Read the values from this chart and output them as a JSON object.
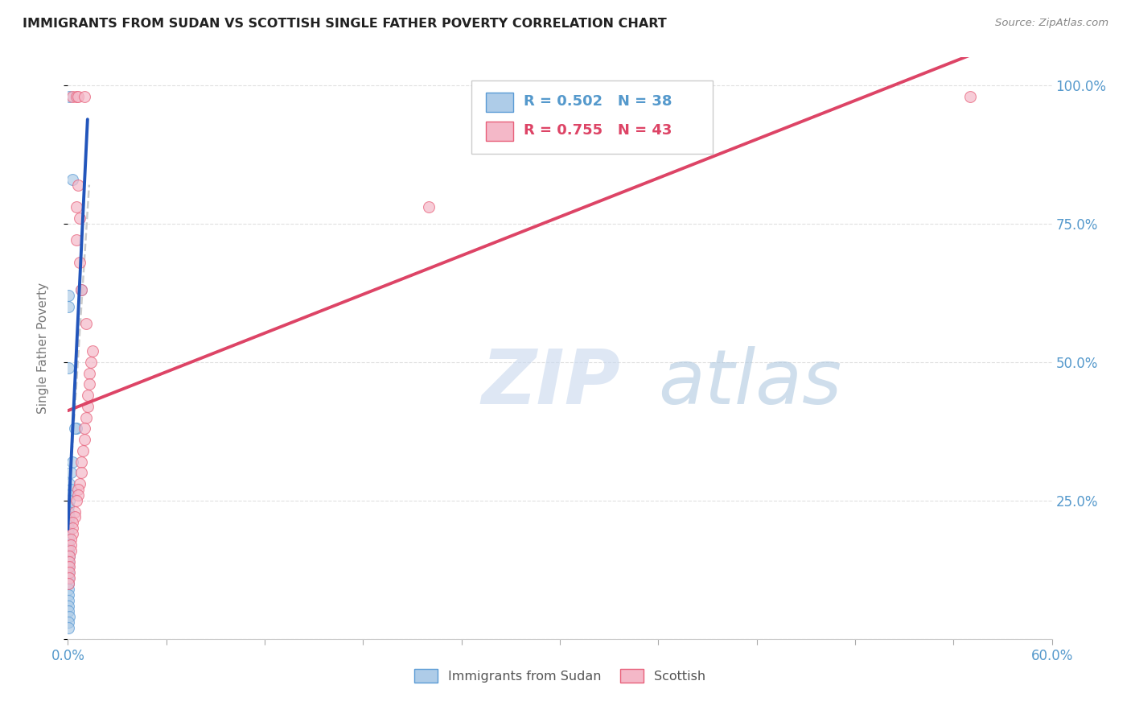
{
  "title": "IMMIGRANTS FROM SUDAN VS SCOTTISH SINGLE FATHER POVERTY CORRELATION CHART",
  "source": "Source: ZipAtlas.com",
  "ylabel": "Single Father Poverty",
  "legend_blue_r": "R = 0.502",
  "legend_blue_n": "N = 38",
  "legend_pink_r": "R = 0.755",
  "legend_pink_n": "N = 43",
  "watermark_zip": "ZIP",
  "watermark_atlas": "atlas",
  "blue_color": "#aecce8",
  "blue_edge": "#5b9bd5",
  "pink_color": "#f4b8c8",
  "pink_edge": "#e8607a",
  "blue_line_color": "#2255bb",
  "pink_line_color": "#dd4466",
  "dash_color": "#cccccc",
  "grid_color": "#e0e0e0",
  "tick_color": "#5599cc",
  "ylabel_color": "#777777",
  "blue_scatter": [
    [
      0.1,
      98.0
    ],
    [
      0.3,
      83.0
    ],
    [
      0.02,
      62.0
    ],
    [
      0.02,
      49.0
    ],
    [
      0.8,
      63.0
    ],
    [
      0.5,
      38.0
    ],
    [
      0.4,
      38.0
    ],
    [
      0.3,
      32.0
    ],
    [
      0.2,
      30.0
    ],
    [
      0.1,
      28.0
    ],
    [
      0.2,
      27.0
    ],
    [
      0.1,
      26.0
    ],
    [
      0.1,
      25.0
    ],
    [
      0.01,
      24.0
    ],
    [
      0.01,
      23.0
    ],
    [
      0.01,
      22.0
    ],
    [
      0.1,
      22.0
    ],
    [
      0.01,
      21.0
    ],
    [
      0.01,
      20.0
    ],
    [
      0.01,
      19.0
    ],
    [
      0.01,
      18.0
    ],
    [
      0.01,
      17.0
    ],
    [
      0.01,
      16.0
    ],
    [
      0.1,
      15.0
    ],
    [
      0.01,
      14.0
    ],
    [
      0.01,
      13.0
    ],
    [
      0.01,
      12.0
    ],
    [
      0.01,
      11.0
    ],
    [
      0.01,
      10.0
    ],
    [
      0.01,
      9.0
    ],
    [
      0.01,
      8.0
    ],
    [
      0.01,
      7.0
    ],
    [
      0.01,
      6.0
    ],
    [
      0.01,
      5.0
    ],
    [
      0.1,
      4.0
    ],
    [
      0.01,
      3.0
    ],
    [
      0.01,
      2.0
    ],
    [
      0.01,
      60.0
    ]
  ],
  "pink_scatter": [
    [
      0.3,
      98.0
    ],
    [
      0.5,
      98.0
    ],
    [
      0.6,
      98.0
    ],
    [
      1.0,
      98.0
    ],
    [
      55.0,
      98.0
    ],
    [
      0.6,
      82.0
    ],
    [
      0.5,
      78.0
    ],
    [
      0.7,
      76.0
    ],
    [
      0.5,
      72.0
    ],
    [
      0.7,
      68.0
    ],
    [
      0.8,
      63.0
    ],
    [
      1.1,
      57.0
    ],
    [
      1.5,
      52.0
    ],
    [
      1.4,
      50.0
    ],
    [
      22.0,
      78.0
    ],
    [
      1.3,
      48.0
    ],
    [
      1.3,
      46.0
    ],
    [
      1.2,
      44.0
    ],
    [
      1.2,
      42.0
    ],
    [
      1.1,
      40.0
    ],
    [
      1.0,
      38.0
    ],
    [
      1.0,
      36.0
    ],
    [
      0.9,
      34.0
    ],
    [
      0.8,
      32.0
    ],
    [
      0.8,
      30.0
    ],
    [
      0.7,
      28.0
    ],
    [
      0.6,
      27.0
    ],
    [
      0.6,
      26.0
    ],
    [
      0.5,
      25.0
    ],
    [
      0.4,
      23.0
    ],
    [
      0.4,
      22.0
    ],
    [
      0.3,
      21.0
    ],
    [
      0.3,
      20.0
    ],
    [
      0.3,
      19.0
    ],
    [
      0.2,
      18.0
    ],
    [
      0.2,
      17.0
    ],
    [
      0.2,
      16.0
    ],
    [
      0.1,
      15.0
    ],
    [
      0.1,
      14.0
    ],
    [
      0.1,
      13.0
    ],
    [
      0.1,
      12.0
    ],
    [
      0.1,
      11.0
    ],
    [
      0.01,
      10.0
    ]
  ],
  "xlim": [
    0.0,
    60.0
  ],
  "ylim": [
    0.0,
    105.0
  ],
  "yticks": [
    0,
    25,
    50,
    75,
    100
  ],
  "ytick_labels": [
    "",
    "25.0%",
    "50.0%",
    "75.0%",
    "100.0%"
  ],
  "xtick_positions": [
    0,
    6,
    12,
    18,
    24,
    30,
    36,
    42,
    48,
    54,
    60
  ],
  "xtick_labels": [
    "0.0%",
    "",
    "",
    "",
    "",
    "",
    "",
    "",
    "",
    "",
    "60.0%"
  ]
}
